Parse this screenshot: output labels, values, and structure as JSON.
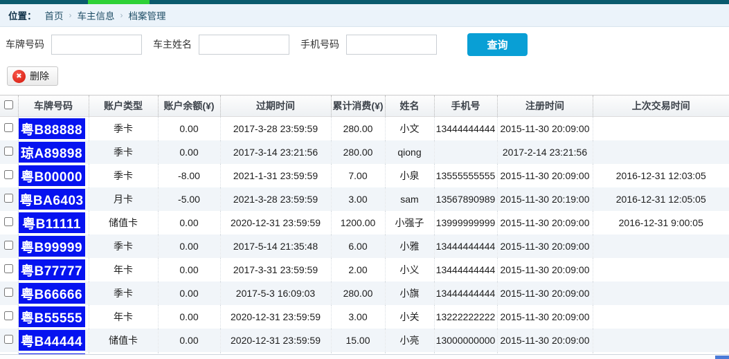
{
  "topbar": {
    "bar_color": "#0a5a6d",
    "accent_color": "#2ed136"
  },
  "breadcrumb": {
    "label": "位置：",
    "separator": "›",
    "items": [
      "首页",
      "车主信息",
      "档案管理"
    ]
  },
  "search": {
    "plate_label": "车牌号码",
    "owner_label": "车主姓名",
    "phone_label": "手机号码",
    "query_button": "查询"
  },
  "toolbar": {
    "delete_button": "删除",
    "delete_icon": "✖"
  },
  "table": {
    "plate_color": "#0613f0",
    "headers": [
      "车牌号码",
      "账户类型",
      "账户余额(¥)",
      "过期时间",
      "累计消费(¥)",
      "姓名",
      "手机号",
      "注册时间",
      "上次交易时间"
    ],
    "rows": [
      {
        "plate": "粤B88888",
        "type": "季卡",
        "balance": "0.00",
        "expire": "2017-3-28 23:59:59",
        "consume": "280.00",
        "name": "小文",
        "phone": "13444444444",
        "reg": "2015-11-30 20:09:00",
        "last": ""
      },
      {
        "plate": "琼A89898",
        "type": "季卡",
        "balance": "0.00",
        "expire": "2017-3-14 23:21:56",
        "consume": "280.00",
        "name": "qiong",
        "phone": "",
        "reg": "2017-2-14 23:21:56",
        "last": ""
      },
      {
        "plate": "粤B00000",
        "type": "季卡",
        "balance": "-8.00",
        "expire": "2021-1-31 23:59:59",
        "consume": "7.00",
        "name": "小泉",
        "phone": "13555555555",
        "reg": "2015-11-30 20:09:00",
        "last": "2016-12-31 12:03:05"
      },
      {
        "plate": "粤BA6403",
        "type": "月卡",
        "balance": "-5.00",
        "expire": "2021-3-28 23:59:59",
        "consume": "3.00",
        "name": "sam",
        "phone": "13567890989",
        "reg": "2015-11-30 20:19:00",
        "last": "2016-12-31 12:05:05"
      },
      {
        "plate": "粤B11111",
        "type": "储值卡",
        "balance": "0.00",
        "expire": "2020-12-31 23:59:59",
        "consume": "1200.00",
        "name": "小强子",
        "phone": "13999999999",
        "reg": "2015-11-30 20:09:00",
        "last": "2016-12-31 9:00:05"
      },
      {
        "plate": "粤B99999",
        "type": "季卡",
        "balance": "0.00",
        "expire": "2017-5-14 21:35:48",
        "consume": "6.00",
        "name": "小雅",
        "phone": "13444444444",
        "reg": "2015-11-30 20:09:00",
        "last": ""
      },
      {
        "plate": "粤B77777",
        "type": "年卡",
        "balance": "0.00",
        "expire": "2017-3-31 23:59:59",
        "consume": "2.00",
        "name": "小义",
        "phone": "13444444444",
        "reg": "2015-11-30 20:09:00",
        "last": ""
      },
      {
        "plate": "粤B66666",
        "type": "季卡",
        "balance": "0.00",
        "expire": "2017-5-3 16:09:03",
        "consume": "280.00",
        "name": "小旗",
        "phone": "13444444444",
        "reg": "2015-11-30 20:09:00",
        "last": ""
      },
      {
        "plate": "粤B55555",
        "type": "年卡",
        "balance": "0.00",
        "expire": "2020-12-31 23:59:59",
        "consume": "3.00",
        "name": "小关",
        "phone": "13222222222",
        "reg": "2015-11-30 20:09:00",
        "last": ""
      },
      {
        "plate": "粤B44444",
        "type": "储值卡",
        "balance": "0.00",
        "expire": "2020-12-31 23:59:59",
        "consume": "15.00",
        "name": "小亮",
        "phone": "13000000000",
        "reg": "2015-11-30 20:09:00",
        "last": ""
      }
    ],
    "partial_row_visible": true
  },
  "footer": {
    "thumb_color": "#4a7bd8"
  }
}
